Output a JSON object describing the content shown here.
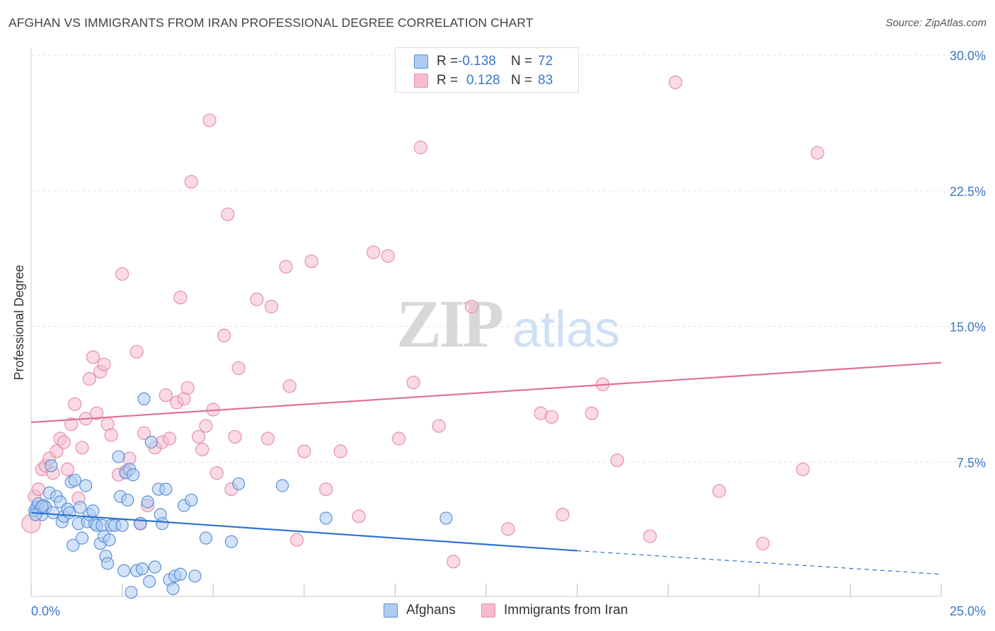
{
  "title": "AFGHAN VS IMMIGRANTS FROM IRAN PROFESSIONAL DEGREE CORRELATION CHART",
  "source": "Source: ZipAtlas.com",
  "watermark": {
    "zip": "ZIP",
    "atlas": "atlas"
  },
  "colors": {
    "blue_fill": "#aecbf2",
    "blue_stroke": "#5b92d6",
    "blue_line": "#2e73d1",
    "pink_fill": "#f6bccd",
    "pink_stroke": "#e590ab",
    "pink_line": "#e0709a",
    "tick_text": "#3a78c9",
    "grid": "#e2e2e2"
  },
  "legend": {
    "rows": [
      {
        "r_label": "R =",
        "r_value": "-0.138",
        "n_label": "N =",
        "n_value": "72"
      },
      {
        "r_label": "R =",
        "r_value": "0.128",
        "n_label": "N =",
        "n_value": "83"
      }
    ]
  },
  "bottom_legend": {
    "afghans": "Afghans",
    "iran": "Immigrants from Iran"
  },
  "chart_data": {
    "type": "scatter",
    "title": "AFGHAN VS IMMIGRANTS FROM IRAN PROFESSIONAL DEGREE CORRELATION CHART",
    "xlabel": "",
    "ylabel": "Professional Degree",
    "xlim": [
      0,
      25
    ],
    "ylim": [
      0,
      30
    ],
    "x_tick_labels": [
      "0.0%",
      "25.0%"
    ],
    "y_ticks": [
      7.5,
      15.0,
      22.5,
      30.0
    ],
    "y_tick_labels": [
      "7.5%",
      "15.0%",
      "22.5%",
      "30.0%"
    ],
    "series": [
      {
        "name": "Afghans",
        "r": -0.138,
        "n": 72,
        "trend": {
          "x0": 0,
          "y0": 4.7,
          "x1": 15,
          "y1": 2.6,
          "dash_to_x": 25,
          "dash_to_y": 1.3
        },
        "points": [
          [
            0.1,
            4.8
          ],
          [
            0.15,
            5.0
          ],
          [
            0.2,
            5.2
          ],
          [
            0.25,
            4.9
          ],
          [
            0.3,
            4.6
          ],
          [
            0.35,
            5.1
          ],
          [
            0.4,
            5.0
          ],
          [
            0.5,
            5.8
          ],
          [
            0.55,
            7.3
          ],
          [
            0.6,
            4.7
          ],
          [
            0.7,
            5.6
          ],
          [
            0.8,
            5.3
          ],
          [
            0.85,
            4.2
          ],
          [
            0.9,
            4.5
          ],
          [
            1.0,
            4.9
          ],
          [
            1.05,
            4.7
          ],
          [
            1.1,
            6.4
          ],
          [
            1.15,
            2.9
          ],
          [
            1.2,
            6.5
          ],
          [
            1.3,
            4.1
          ],
          [
            1.35,
            5.0
          ],
          [
            1.4,
            3.3
          ],
          [
            1.5,
            6.2
          ],
          [
            1.55,
            4.2
          ],
          [
            1.6,
            4.6
          ],
          [
            1.7,
            4.8
          ],
          [
            1.75,
            4.1
          ],
          [
            1.8,
            4.0
          ],
          [
            1.9,
            3.0
          ],
          [
            1.95,
            4.0
          ],
          [
            2.0,
            3.4
          ],
          [
            2.05,
            2.3
          ],
          [
            2.1,
            1.9
          ],
          [
            2.15,
            3.2
          ],
          [
            2.2,
            4.0
          ],
          [
            2.3,
            4.0
          ],
          [
            2.4,
            7.8
          ],
          [
            2.45,
            5.6
          ],
          [
            2.5,
            4.0
          ],
          [
            2.55,
            1.5
          ],
          [
            2.6,
            6.9
          ],
          [
            2.65,
            5.4
          ],
          [
            2.7,
            7.1
          ],
          [
            2.75,
            0.3
          ],
          [
            2.8,
            6.8
          ],
          [
            2.9,
            1.5
          ],
          [
            3.0,
            4.1
          ],
          [
            3.05,
            1.6
          ],
          [
            3.1,
            11.0
          ],
          [
            3.2,
            5.3
          ],
          [
            3.25,
            0.9
          ],
          [
            3.3,
            8.6
          ],
          [
            3.4,
            1.7
          ],
          [
            3.5,
            6.0
          ],
          [
            3.55,
            4.6
          ],
          [
            3.6,
            4.1
          ],
          [
            3.7,
            6.0
          ],
          [
            3.8,
            1.0
          ],
          [
            3.9,
            0.5
          ],
          [
            3.95,
            1.2
          ],
          [
            4.1,
            1.3
          ],
          [
            4.2,
            5.1
          ],
          [
            4.4,
            5.4
          ],
          [
            4.5,
            1.2
          ],
          [
            4.8,
            3.3
          ],
          [
            5.5,
            3.1
          ],
          [
            5.7,
            6.3
          ],
          [
            6.9,
            6.2
          ],
          [
            8.1,
            4.4
          ],
          [
            11.4,
            4.4
          ],
          [
            0.12,
            4.6
          ],
          [
            0.3,
            5.05
          ]
        ]
      },
      {
        "name": "Immigrants from Iran",
        "r": 0.128,
        "n": 83,
        "trend": {
          "x0": 0,
          "y0": 9.7,
          "x1": 25,
          "y1": 13.0
        },
        "points": [
          [
            0.0,
            4.1
          ],
          [
            0.1,
            5.6
          ],
          [
            0.2,
            6.0
          ],
          [
            0.3,
            7.1
          ],
          [
            0.4,
            7.3
          ],
          [
            0.5,
            7.7
          ],
          [
            0.6,
            6.9
          ],
          [
            0.7,
            8.1
          ],
          [
            0.8,
            8.8
          ],
          [
            0.9,
            8.6
          ],
          [
            1.0,
            7.1
          ],
          [
            1.1,
            9.6
          ],
          [
            1.2,
            10.7
          ],
          [
            1.3,
            5.5
          ],
          [
            1.4,
            8.3
          ],
          [
            1.5,
            9.9
          ],
          [
            1.6,
            12.1
          ],
          [
            1.7,
            13.3
          ],
          [
            1.8,
            10.2
          ],
          [
            1.9,
            12.5
          ],
          [
            2.0,
            12.9
          ],
          [
            2.1,
            9.6
          ],
          [
            2.2,
            9.0
          ],
          [
            2.4,
            6.8
          ],
          [
            2.5,
            17.9
          ],
          [
            2.6,
            7.0
          ],
          [
            2.7,
            7.7
          ],
          [
            2.9,
            13.6
          ],
          [
            3.0,
            4.1
          ],
          [
            3.1,
            9.1
          ],
          [
            3.2,
            5.1
          ],
          [
            3.4,
            8.3
          ],
          [
            3.6,
            8.6
          ],
          [
            3.7,
            11.2
          ],
          [
            3.8,
            8.8
          ],
          [
            4.0,
            10.8
          ],
          [
            4.1,
            16.6
          ],
          [
            4.2,
            11.0
          ],
          [
            4.3,
            11.6
          ],
          [
            4.4,
            23.0
          ],
          [
            4.6,
            8.9
          ],
          [
            4.7,
            8.2
          ],
          [
            4.8,
            9.5
          ],
          [
            4.9,
            26.4
          ],
          [
            5.0,
            10.4
          ],
          [
            5.1,
            6.9
          ],
          [
            5.3,
            14.5
          ],
          [
            5.4,
            21.2
          ],
          [
            5.5,
            6.0
          ],
          [
            5.6,
            8.9
          ],
          [
            5.7,
            12.7
          ],
          [
            6.2,
            16.5
          ],
          [
            6.5,
            8.8
          ],
          [
            6.6,
            16.1
          ],
          [
            7.0,
            18.3
          ],
          [
            7.1,
            11.7
          ],
          [
            7.3,
            3.2
          ],
          [
            7.5,
            8.1
          ],
          [
            7.7,
            18.6
          ],
          [
            8.1,
            6.0
          ],
          [
            8.5,
            8.1
          ],
          [
            9.0,
            4.5
          ],
          [
            9.4,
            19.1
          ],
          [
            9.8,
            18.9
          ],
          [
            10.1,
            8.8
          ],
          [
            10.5,
            11.9
          ],
          [
            10.7,
            24.9
          ],
          [
            11.2,
            9.5
          ],
          [
            11.6,
            2.0
          ],
          [
            12.1,
            16.1
          ],
          [
            13.1,
            3.8
          ],
          [
            14.0,
            10.2
          ],
          [
            14.3,
            10.0
          ],
          [
            14.6,
            4.6
          ],
          [
            15.4,
            10.2
          ],
          [
            15.7,
            11.8
          ],
          [
            16.1,
            7.6
          ],
          [
            17.0,
            3.4
          ],
          [
            17.7,
            28.5
          ],
          [
            18.9,
            5.9
          ],
          [
            20.1,
            3.0
          ],
          [
            21.2,
            7.1
          ],
          [
            21.6,
            24.6
          ]
        ]
      }
    ]
  }
}
